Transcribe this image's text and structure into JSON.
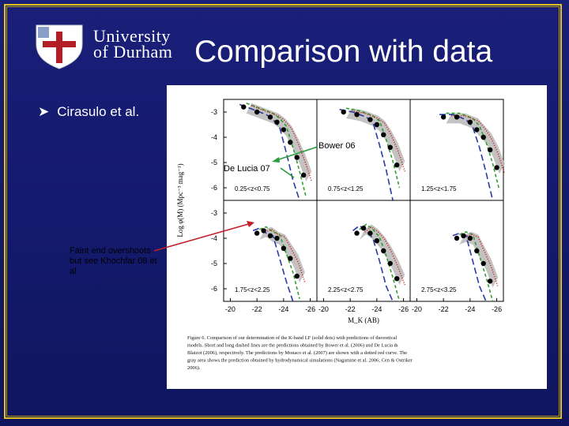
{
  "slide": {
    "title": "Comparison with data",
    "logo_line1": "University",
    "logo_line2": "of Durham",
    "bullet": "Cirasulo et al.",
    "annotations": {
      "bower": "Bower 06",
      "delucia": "De Lucia 07",
      "faint_end": "Faint end overshoots - but see Khochfar 08 et al"
    }
  },
  "colors": {
    "background": "#141a6e",
    "border": "#e0c21a",
    "text": "#ffffff",
    "arrow": "#2a9a3a",
    "annotation_line": "#c0202a",
    "data_points": "#000000",
    "bower_curve": "#2a3aa8",
    "delucia_curve": "#2ea02e",
    "monaco_curve": "#d01818",
    "simulation_band": "#b8b8b8"
  },
  "chart_data": {
    "type": "line",
    "ylabel": "Log φ(M) (Mpc⁻³ mag⁻¹)",
    "xlabel": "M_K (AB)",
    "xticks": [
      "-20",
      "-22",
      "-24",
      "-26"
    ],
    "yticks": [
      "-3",
      "-4",
      "-5",
      "-6"
    ],
    "xlim": [
      -19.5,
      -26.5
    ],
    "ylim": [
      -6.5,
      -2.5
    ],
    "panels": [
      {
        "label": "0.25<z<0.75",
        "data": {
          "x": [
            -21.0,
            -22.0,
            -23.0,
            -23.5,
            -24.0,
            -24.5,
            -25.0,
            -25.5
          ],
          "y": [
            -2.8,
            -3.0,
            -3.2,
            -3.4,
            -3.7,
            -4.2,
            -4.8,
            -5.5
          ]
        }
      },
      {
        "label": "0.75<z<1.25",
        "data": {
          "x": [
            -21.5,
            -22.5,
            -23.5,
            -24.0,
            -24.5,
            -25.0,
            -25.5
          ],
          "y": [
            -3.0,
            -3.1,
            -3.3,
            -3.5,
            -3.9,
            -4.4,
            -5.1
          ]
        }
      },
      {
        "label": "1.25<z<1.75",
        "data": {
          "x": [
            -22.0,
            -23.0,
            -24.0,
            -24.5,
            -25.0,
            -25.5,
            -26.0
          ],
          "y": [
            -3.2,
            -3.2,
            -3.4,
            -3.7,
            -4.0,
            -4.5,
            -5.2
          ]
        }
      },
      {
        "label": "1.75<z<2.25",
        "data": {
          "x": [
            -22.0,
            -22.5,
            -23.0,
            -23.5,
            -24.0,
            -24.5,
            -25.0
          ],
          "y": [
            -3.8,
            -3.7,
            -3.9,
            -4.0,
            -4.4,
            -4.8,
            -5.5
          ]
        }
      },
      {
        "label": "2.25<z<2.75",
        "data": {
          "x": [
            -22.5,
            -23.0,
            -23.5,
            -24.0,
            -24.5,
            -25.0,
            -25.5
          ],
          "y": [
            -3.8,
            -3.6,
            -3.8,
            -4.1,
            -4.5,
            -5.0,
            -5.6
          ]
        }
      },
      {
        "label": "2.75<z<3.25",
        "data": {
          "x": [
            -23.0,
            -23.5,
            -24.0,
            -24.5,
            -25.0,
            -25.5
          ],
          "y": [
            -4.0,
            -3.9,
            -4.0,
            -4.5,
            -5.0,
            -5.7
          ]
        }
      }
    ],
    "caption_label": "Figure 6.",
    "caption": "Comparison of our determination of the K-band LF (solid dots) with predictions of theoretical models. Short and long dashed lines are the predictions obtained by Bower et al. (2006) and De Lucia & Blaizot (2006), respectively. The predictions by Monaco et al. (2007) are shown with a dotted red curve. The gray area shows the prediction obtained by hydrodynamical simulations (Nagamine et al. 2006; Cen & Ostriker 2006)."
  }
}
